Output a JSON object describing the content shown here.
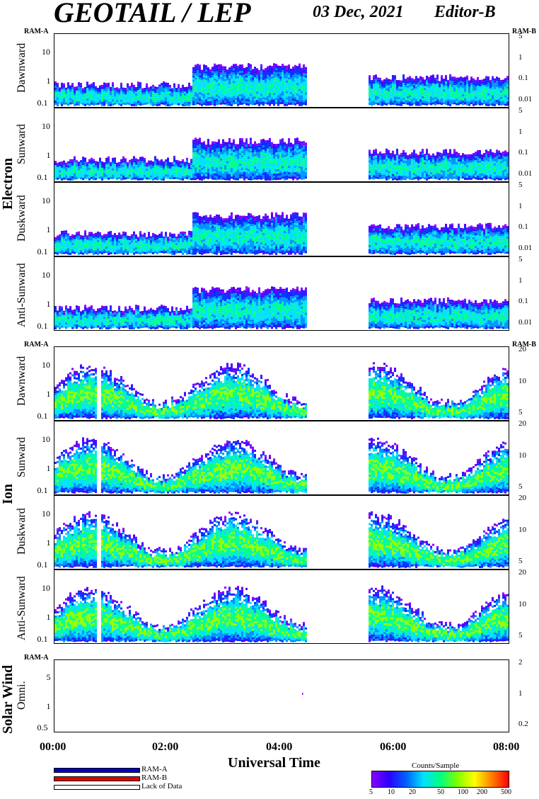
{
  "header": {
    "title": "GEOTAIL / LEP",
    "date": "03 Dec, 2021",
    "editor": "Editor-B"
  },
  "ram_labels": {
    "ram_a": "RAM-A",
    "ram_b": "RAM-B"
  },
  "groups": {
    "electron": "Electron",
    "ion": "Ion",
    "solar_wind": "Solar Wind"
  },
  "panels": [
    {
      "id": "e1",
      "label": "Dawnward",
      "left_ticks": [
        "10",
        "1",
        "0.1"
      ],
      "right_ticks": [
        "5",
        "1",
        "0.1",
        "0.01"
      ]
    },
    {
      "id": "e2",
      "label": "Sunward",
      "left_ticks": [
        "10",
        "1",
        "0.1"
      ],
      "right_ticks": [
        "5",
        "1",
        "0.1",
        "0.01"
      ]
    },
    {
      "id": "e3",
      "label": "Duskward",
      "left_ticks": [
        "10",
        "1",
        "0.1"
      ],
      "right_ticks": [
        "5",
        "1",
        "0.1",
        "0.01"
      ]
    },
    {
      "id": "e4",
      "label": "Anti-Sunward",
      "left_ticks": [
        "10",
        "1",
        "0.1"
      ],
      "right_ticks": [
        "5",
        "1",
        "0.1",
        "0.01"
      ]
    },
    {
      "id": "i1",
      "label": "Dawnward",
      "left_ticks": [
        "10",
        "1",
        "0.1"
      ],
      "right_ticks": [
        "20",
        "10",
        "5"
      ]
    },
    {
      "id": "i2",
      "label": "Sunward",
      "left_ticks": [
        "10",
        "1",
        "0.1"
      ],
      "right_ticks": [
        "20",
        "10",
        "5"
      ]
    },
    {
      "id": "i3",
      "label": "Duskward",
      "left_ticks": [
        "10",
        "1",
        "0.1"
      ],
      "right_ticks": [
        "20",
        "10",
        "5"
      ]
    },
    {
      "id": "i4",
      "label": "Anti-Sunward",
      "left_ticks": [
        "10",
        "1",
        "0.1"
      ],
      "right_ticks": [
        "20",
        "10",
        "5"
      ]
    },
    {
      "id": "sw",
      "label": "Omni.",
      "left_ticks": [
        "5",
        "1",
        "0.5"
      ],
      "right_ticks": [
        "2",
        "1",
        "0.2"
      ]
    }
  ],
  "xaxis": {
    "label": "Universal Time",
    "ticks": [
      "00:00",
      "02:00",
      "04:00",
      "06:00",
      "08:00"
    ]
  },
  "legend": {
    "ram_a": "RAM-A",
    "ram_b": "RAM-B",
    "lack": "Lack of Data"
  },
  "colorbar": {
    "title": "Counts/Sample",
    "ticks": [
      "5",
      "10",
      "20",
      "50",
      "100",
      "200",
      "500"
    ]
  },
  "colors": {
    "ram_a": "#0000c8",
    "ram_b": "#e00000",
    "lack": "#ffffff"
  },
  "chart_data": {
    "type": "heatmap",
    "title": "GEOTAIL / LEP",
    "xlabel": "Universal Time",
    "xlim": [
      "00:00",
      "08:00"
    ],
    "data_gap": [
      "04:25",
      "05:30"
    ],
    "z_label": "Counts/Sample",
    "z_range": [
      5,
      500
    ]
  }
}
